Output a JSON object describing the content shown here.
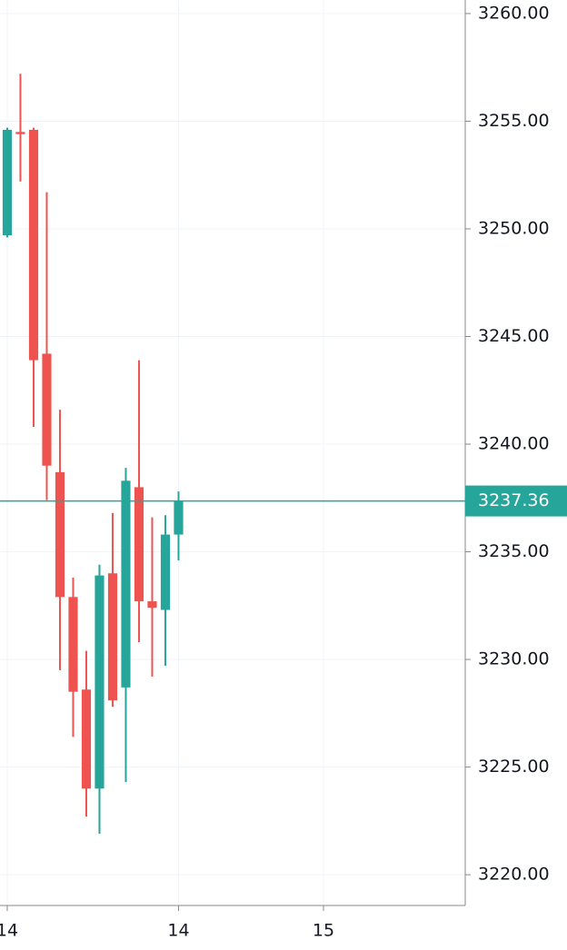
{
  "chart_data": {
    "type": "candlestick",
    "x": [
      0,
      1,
      2,
      3,
      4,
      5,
      6,
      7,
      8,
      9,
      10,
      11,
      12,
      13
    ],
    "open": [
      3249.7,
      3254.5,
      3254.6,
      3244.2,
      3238.7,
      3232.9,
      3228.6,
      3224.0,
      3234.0,
      3228.7,
      3238.0,
      3232.7,
      3232.3,
      3235.8
    ],
    "high": [
      3254.7,
      3257.2,
      3254.7,
      3251.7,
      3241.6,
      3233.8,
      3230.4,
      3234.4,
      3236.8,
      3238.9,
      3243.9,
      3236.6,
      3236.7,
      3237.8
    ],
    "low": [
      3249.6,
      3252.2,
      3240.8,
      3237.4,
      3229.5,
      3226.4,
      3222.7,
      3221.9,
      3227.8,
      3224.3,
      3230.8,
      3229.2,
      3229.7,
      3234.6
    ],
    "close": [
      3254.6,
      3254.4,
      3243.9,
      3239.0,
      3232.9,
      3228.5,
      3224.0,
      3233.9,
      3228.1,
      3238.3,
      3232.7,
      3232.4,
      3235.8,
      3237.36
    ],
    "up_color": "#26a69a",
    "down_color": "#ef5350",
    "last_price": 3237.36,
    "xlim": [
      -0.55,
      34.76
    ],
    "xticks": [
      {
        "value": 0,
        "label": "14"
      },
      {
        "value": 13,
        "label": "14"
      },
      {
        "value": 24,
        "label": "15"
      }
    ],
    "ylim": [
      3218.57,
      3260.63
    ],
    "yticks": [
      {
        "value": 3220,
        "label": "3220.00"
      },
      {
        "value": 3225,
        "label": "3225.00"
      },
      {
        "value": 3230,
        "label": "3230.00"
      },
      {
        "value": 3235,
        "label": "3235.00"
      },
      {
        "value": 3240,
        "label": "3240.00"
      },
      {
        "value": 3245,
        "label": "3245.00"
      },
      {
        "value": 3250,
        "label": "3250.00"
      },
      {
        "value": 3255,
        "label": "3255.00"
      },
      {
        "value": 3260,
        "label": "3260.00"
      }
    ],
    "grid": true
  }
}
